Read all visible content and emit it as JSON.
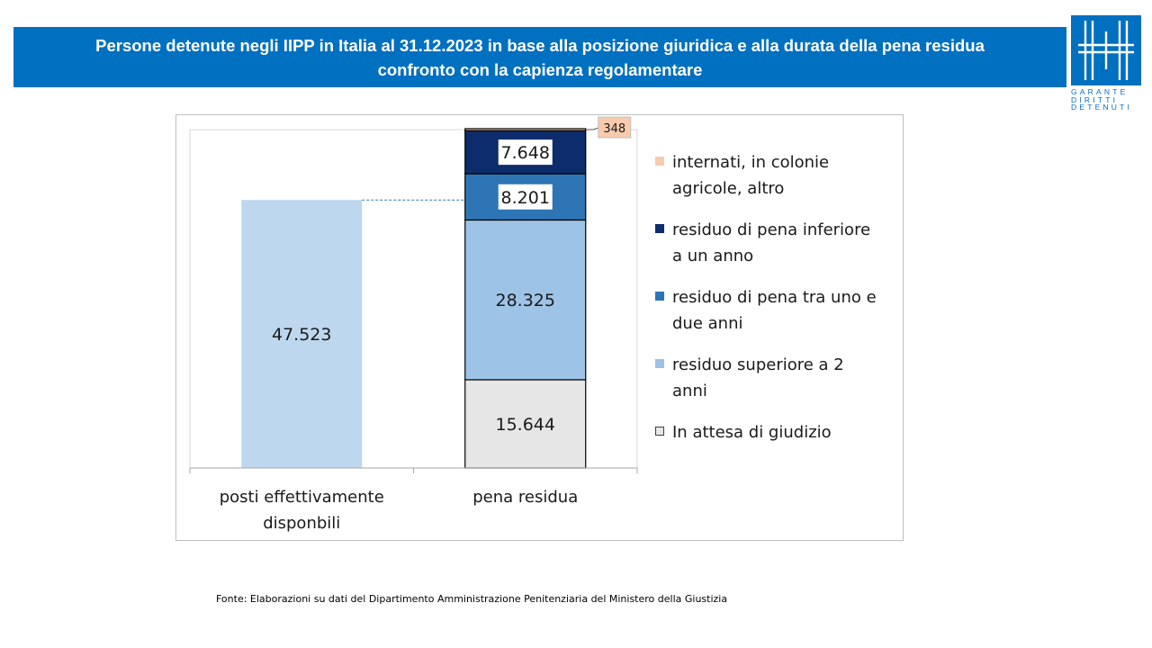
{
  "title": {
    "line1": "Persone detenute negli IIPP in Italia al 31.12.2023 in base alla posizione giuridica e alla durata della pena residua",
    "line2": "confronto con la capienza regolamentare"
  },
  "logo": {
    "line1": "GARANTE",
    "line2": "DIRITTI",
    "line3": "DETENUTI"
  },
  "source": "Fonte:  Elaborazioni su dati del Dipartimento  Amministrazione Penitenziaria del Ministero della Giustizia",
  "colors": {
    "brand": "#0070c0",
    "capacity_bar": "#bdd7ee"
  },
  "chart_data": {
    "type": "bar",
    "stacked": true,
    "categories": [
      "posti effettivamente disponbili",
      "pena residua"
    ],
    "category_labels": [
      [
        "posti effettivamente",
        "disponbili"
      ],
      [
        "pena residua"
      ]
    ],
    "ylim": [
      0,
      60000
    ],
    "grid": false,
    "legend_position": "right",
    "series": [
      {
        "name": "In attesa di giudizio",
        "label": [
          "In attesa di giudizio"
        ],
        "color": "#e7e6e6",
        "values": [
          0,
          15644
        ],
        "value_labels": [
          "",
          "15.644"
        ]
      },
      {
        "name": "residuo superiore a 2 anni",
        "label": [
          "residuo superiore a 2",
          "anni"
        ],
        "color": "#9dc3e6",
        "values": [
          0,
          28325
        ],
        "value_labels": [
          "",
          "28.325"
        ]
      },
      {
        "name": "residuo di pena tra uno e due anni",
        "label": [
          "residuo di pena tra uno e",
          "due anni"
        ],
        "color": "#2e75b6",
        "values": [
          0,
          8201
        ],
        "value_labels": [
          "",
          "8.201"
        ]
      },
      {
        "name": "residuo di pena inferiore a un anno",
        "label": [
          "residuo di pena inferiore",
          "a un anno"
        ],
        "color": "#0d2c6b",
        "values": [
          0,
          7648
        ],
        "value_labels": [
          "",
          "7.648"
        ]
      },
      {
        "name": "internati, in colonie agricole, altro",
        "label": [
          "internati, in colonie",
          "agricole, altro"
        ],
        "color": "#f8cbad",
        "values": [
          0,
          348
        ],
        "value_labels": [
          "",
          "348"
        ]
      }
    ],
    "capacity": {
      "category": "posti effettivamente disponbili",
      "value": 47523,
      "label": "47.523"
    }
  }
}
